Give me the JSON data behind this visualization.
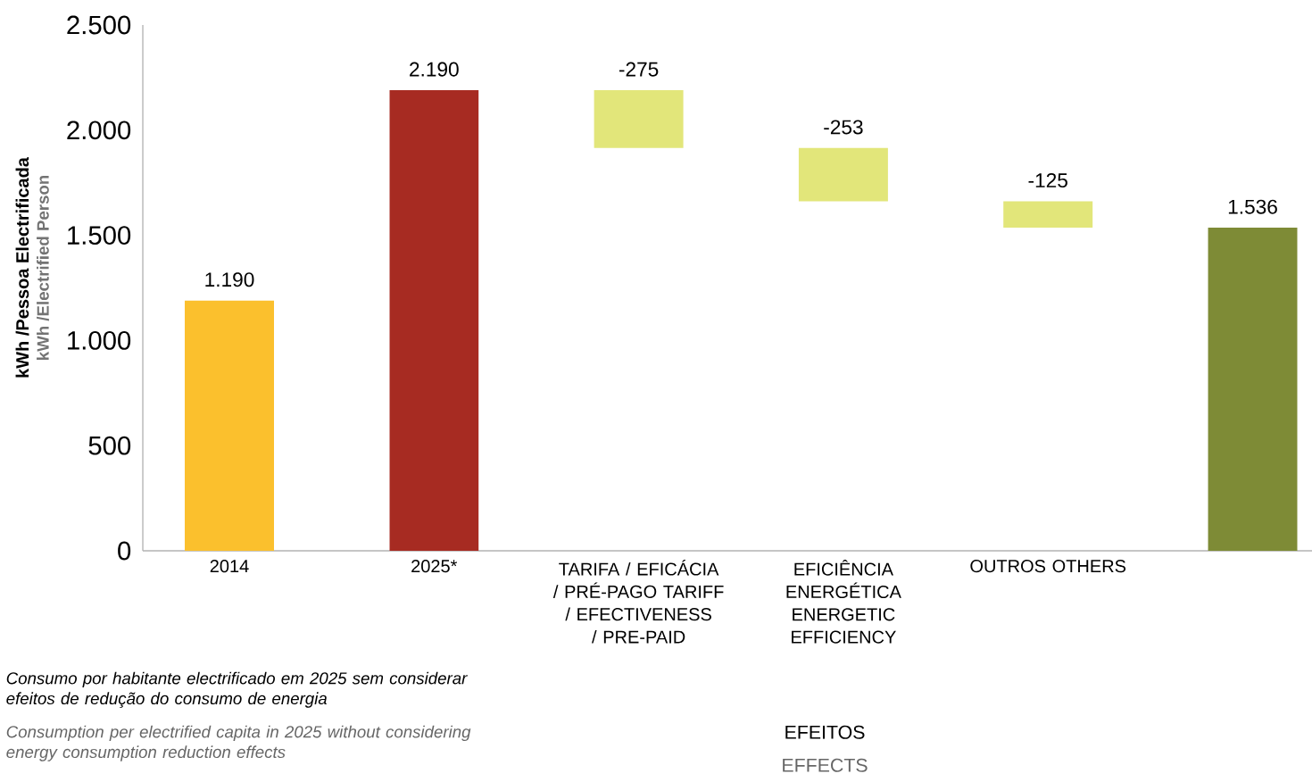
{
  "chart_data": {
    "type": "bar",
    "ylabel": "kWh /Pessoa Electrificada",
    "categories": [
      "2014",
      "2025*",
      "TARIFA / EFICÁCIA / PRÉ-PAGO TARIFF / EFECTIVENESS / PRE-PAID",
      "EFICIÊNCIA ENERGÉTICA ENERGETIC EFFICIENCY",
      "OUTROS OTHERS",
      null
    ],
    "values": [
      1190,
      2190,
      -275,
      -253,
      -125,
      1536
    ],
    "base": [
      0,
      0,
      2190,
      1915,
      1662,
      0
    ],
    "colors": [
      "#fbc02d",
      "#a72b22",
      "#e2e67a",
      "#e2e67a",
      "#e2e67a",
      "#7e8b36"
    ],
    "value_labels": [
      "1.190",
      "2.190",
      "-275",
      "-253",
      "-125",
      "1.536"
    ],
    "ylim": [
      0,
      2500
    ],
    "yticks": [
      0,
      500,
      {
        "value": 1000,
        "label": "1.000"
      },
      {
        "value": 1500,
        "label": "1.500"
      },
      {
        "value": 2000,
        "label": "2.000"
      },
      {
        "value": 2500,
        "label": "2.500"
      }
    ],
    "grid": false,
    "annotations": [
      "kWh /Electrified Person",
      "Consumo por habitante electrificado em 2025 sem considerar efeitos de redução do consumo de energia",
      "Consumption per electrified capita in 2025 without considering energy consumption reduction effects",
      "EFEITOS",
      "EFFECTS"
    ]
  }
}
